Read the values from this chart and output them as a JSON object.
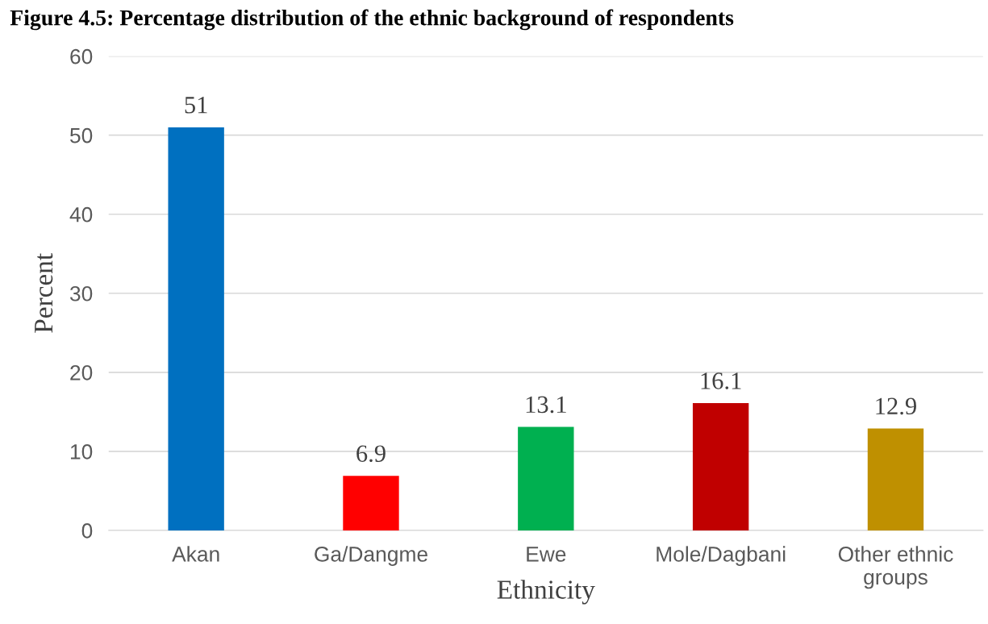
{
  "chart_data": {
    "type": "bar",
    "title": "Figure 4.5: Percentage distribution of the ethnic background of respondents",
    "xlabel": "Ethnicity",
    "ylabel": "Percent",
    "categories": [
      "Akan",
      "Ga/Dangme",
      "Ewe",
      "Mole/Dagbani",
      "Other ethnic\ngroups"
    ],
    "values": [
      51,
      6.9,
      13.1,
      16.1,
      12.9
    ],
    "colors": [
      "#0070c0",
      "#ff0000",
      "#00b050",
      "#c00000",
      "#bf9000"
    ],
    "ylim": [
      0,
      60
    ],
    "yticks": [
      0,
      10,
      20,
      30,
      40,
      50,
      60
    ],
    "grid": "y",
    "data_labels": true
  }
}
